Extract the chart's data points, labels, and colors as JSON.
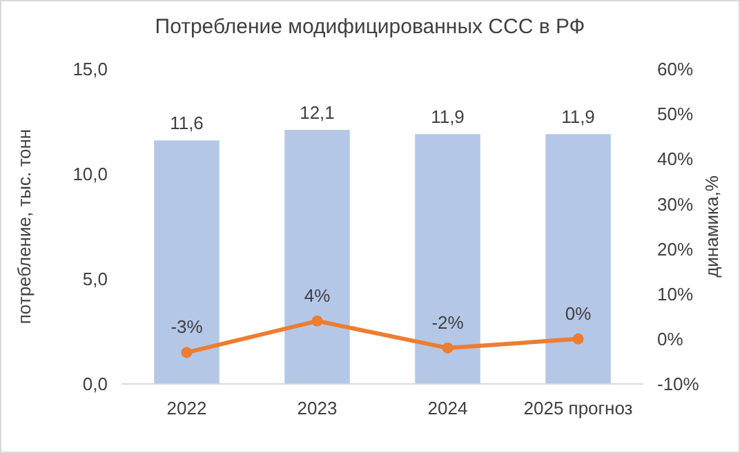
{
  "chart_data": {
    "type": "bar",
    "title": "Потребление модифицированных ССС в РФ",
    "ylabel": "потребление, тыс. тонн",
    "y2label": "динамика,%",
    "categories": [
      "2022",
      "2023",
      "2024",
      "2025 прогноз"
    ],
    "series": [
      {
        "color": "#b4c7e7",
        "values": [
          11.6,
          12.1,
          11.9,
          11.9
        ],
        "value_labels": [
          "11,6",
          "12,1",
          "11,9",
          "11,9"
        ]
      },
      {
        "type": "line",
        "axis": "y2",
        "color": "#ed7d31",
        "marker": "circle",
        "values": [
          -3,
          4,
          -2,
          0
        ],
        "value_labels": [
          "-3%",
          "4%",
          "-2%",
          "0%"
        ]
      }
    ],
    "ylim": [
      0,
      15
    ],
    "yticks": [
      {
        "value": 0,
        "label": "0,0"
      },
      {
        "value": 5,
        "label": "5,0"
      },
      {
        "value": 10,
        "label": "10,0"
      },
      {
        "value": 15,
        "label": "15,0"
      }
    ],
    "y2lim": [
      -10,
      60
    ],
    "y2ticks": [
      {
        "value": -10,
        "label": "-10%"
      },
      {
        "value": 0,
        "label": "0%"
      },
      {
        "value": 10,
        "label": "10%"
      },
      {
        "value": 20,
        "label": "20%"
      },
      {
        "value": 30,
        "label": "30%"
      },
      {
        "value": 40,
        "label": "40%"
      },
      {
        "value": 50,
        "label": "50%"
      },
      {
        "value": 60,
        "label": "60%"
      }
    ],
    "grid": false
  }
}
